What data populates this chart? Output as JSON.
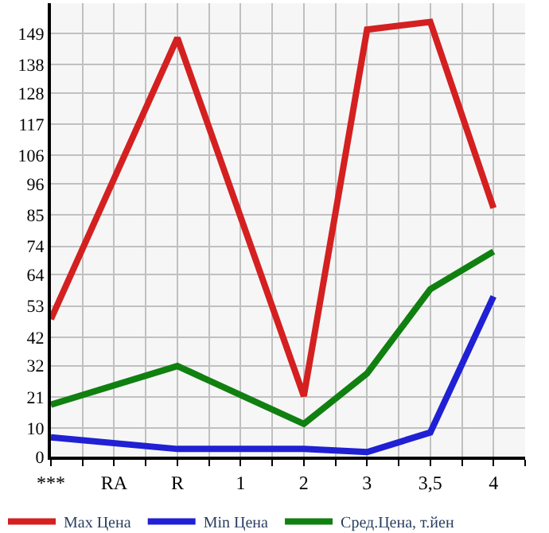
{
  "chart_data": {
    "type": "line",
    "categories": [
      "***",
      "RA",
      "R",
      "1",
      "2",
      "3",
      "3,5",
      "4"
    ],
    "series": [
      {
        "name": "Max Цена",
        "color": "#d42020",
        "values": [
          48.4,
          null,
          147.4,
          null,
          21.3,
          150.3,
          153,
          87.5
        ]
      },
      {
        "name": "Min Цена",
        "color": "#2020d4",
        "values": [
          6.8,
          null,
          2.7,
          2.7,
          2.7,
          1.6,
          8.5,
          56.4
        ]
      },
      {
        "name": "Сред.Цена, т.йен",
        "color": "#108010",
        "values": [
          18.3,
          null,
          31.9,
          null,
          11.5,
          29.3,
          58.9,
          72.2
        ]
      }
    ],
    "ylim": [
      0,
      159.6
    ],
    "yticks": [
      0,
      10,
      21,
      32,
      42,
      53,
      64,
      74,
      85,
      96,
      106,
      117,
      128,
      138,
      149
    ],
    "grid": true,
    "legend": "bottom",
    "marker": "none",
    "line_style": "solid"
  }
}
